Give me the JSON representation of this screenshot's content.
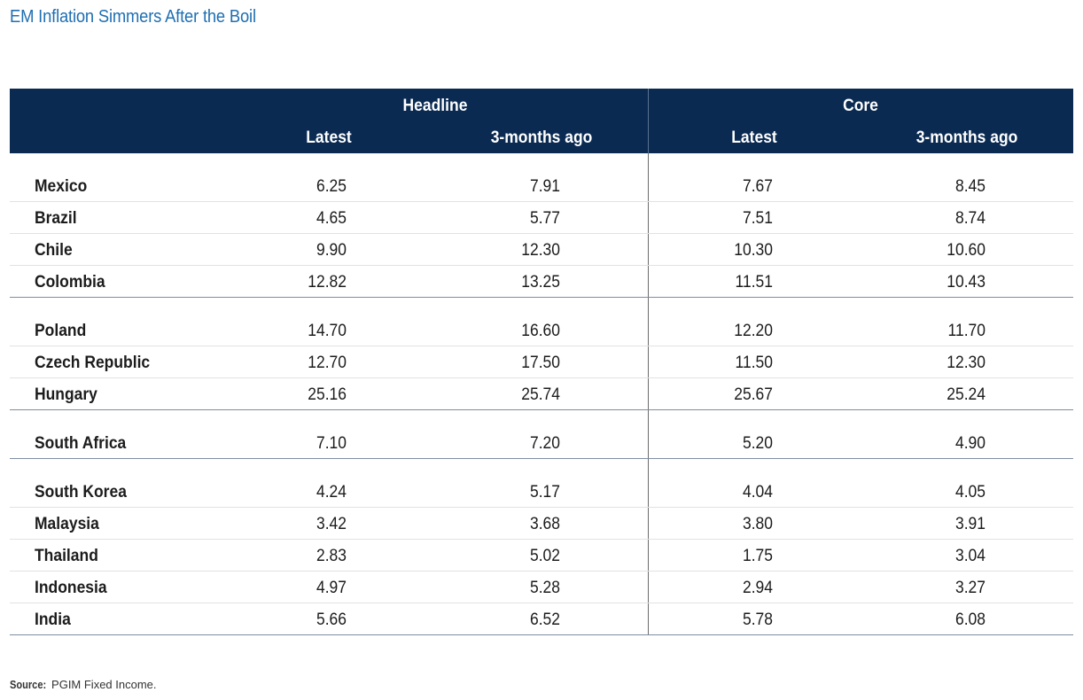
{
  "page": {
    "title": "EM Inflation Simmers After the Boil"
  },
  "chart_data": {
    "type": "table",
    "title": "EM Inflation Simmers After the Boil",
    "column_groups": [
      {
        "name": "Headline",
        "columns": [
          "Latest",
          "3-months ago"
        ]
      },
      {
        "name": "Core",
        "columns": [
          "Latest",
          "3-months ago"
        ]
      }
    ],
    "row_groups": [
      {
        "rows": [
          {
            "country": "Mexico",
            "headline_latest": "6.25",
            "headline_3m": "7.91",
            "core_latest": "7.67",
            "core_3m": "8.45"
          },
          {
            "country": "Brazil",
            "headline_latest": "4.65",
            "headline_3m": "5.77",
            "core_latest": "7.51",
            "core_3m": "8.74"
          },
          {
            "country": "Chile",
            "headline_latest": "9.90",
            "headline_3m": "12.30",
            "core_latest": "10.30",
            "core_3m": "10.60"
          },
          {
            "country": "Colombia",
            "headline_latest": "12.82",
            "headline_3m": "13.25",
            "core_latest": "11.51",
            "core_3m": "10.43"
          }
        ]
      },
      {
        "rows": [
          {
            "country": "Poland",
            "headline_latest": "14.70",
            "headline_3m": "16.60",
            "core_latest": "12.20",
            "core_3m": "11.70"
          },
          {
            "country": "Czech Republic",
            "headline_latest": "12.70",
            "headline_3m": "17.50",
            "core_latest": "11.50",
            "core_3m": "12.30"
          },
          {
            "country": "Hungary",
            "headline_latest": "25.16",
            "headline_3m": "25.74",
            "core_latest": "25.67",
            "core_3m": "25.24"
          }
        ]
      },
      {
        "rows": [
          {
            "country": "South Africa",
            "headline_latest": "7.10",
            "headline_3m": "7.20",
            "core_latest": "5.20",
            "core_3m": "4.90"
          }
        ]
      },
      {
        "rows": [
          {
            "country": "South Korea",
            "headline_latest": "4.24",
            "headline_3m": "5.17",
            "core_latest": "4.04",
            "core_3m": "4.05"
          },
          {
            "country": "Malaysia",
            "headline_latest": "3.42",
            "headline_3m": "3.68",
            "core_latest": "3.80",
            "core_3m": "3.91"
          },
          {
            "country": "Thailand",
            "headline_latest": "2.83",
            "headline_3m": "5.02",
            "core_latest": "1.75",
            "core_3m": "3.04"
          },
          {
            "country": "Indonesia",
            "headline_latest": "4.97",
            "headline_3m": "5.28",
            "core_latest": "2.94",
            "core_3m": "3.27"
          },
          {
            "country": "India",
            "headline_latest": "5.66",
            "headline_3m": "6.52",
            "core_latest": "5.78",
            "core_3m": "6.08"
          }
        ]
      }
    ]
  },
  "footer": {
    "source_label": "Source:",
    "source_text": "PGIM Fixed Income."
  },
  "colors": {
    "title": "#1f6fb2",
    "header_bg": "#0a2a52",
    "header_text": "#ffffff"
  }
}
